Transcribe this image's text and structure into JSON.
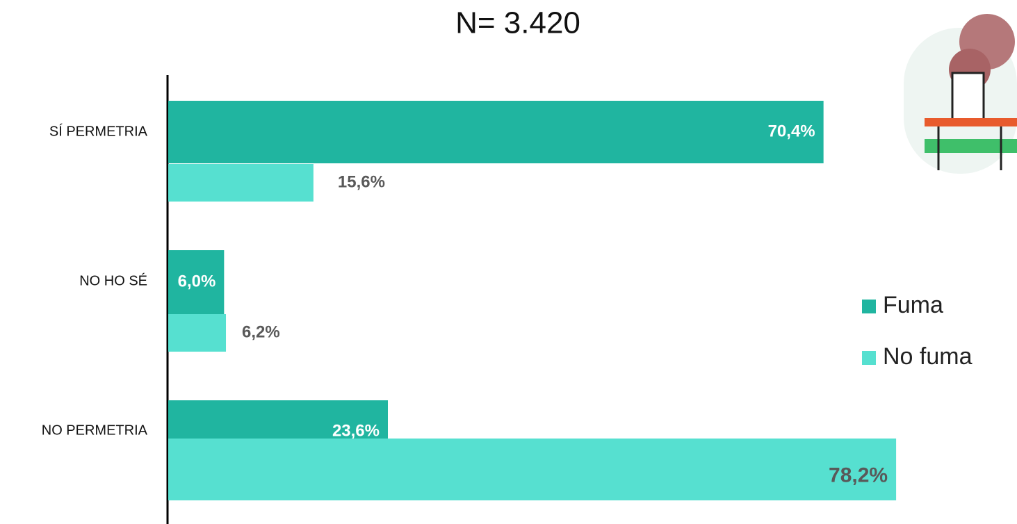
{
  "chart_data": {
    "type": "bar",
    "orientation": "horizontal",
    "title": "N= 3.420",
    "categories": [
      "SÍ PERMETRIA",
      "NO HO SÉ",
      "NO PERMETRIA"
    ],
    "series": [
      {
        "name": "Fuma",
        "color": "#20b5a0",
        "values": [
          70.4,
          6.0,
          23.6
        ],
        "value_labels": [
          "70,4%",
          "6,0%",
          "23,6%"
        ]
      },
      {
        "name": "No fuma",
        "color": "#56e0d0",
        "values": [
          15.6,
          6.2,
          78.2
        ],
        "value_labels": [
          "15,6%",
          "6,2%",
          "78,2%"
        ]
      }
    ]
  }
}
